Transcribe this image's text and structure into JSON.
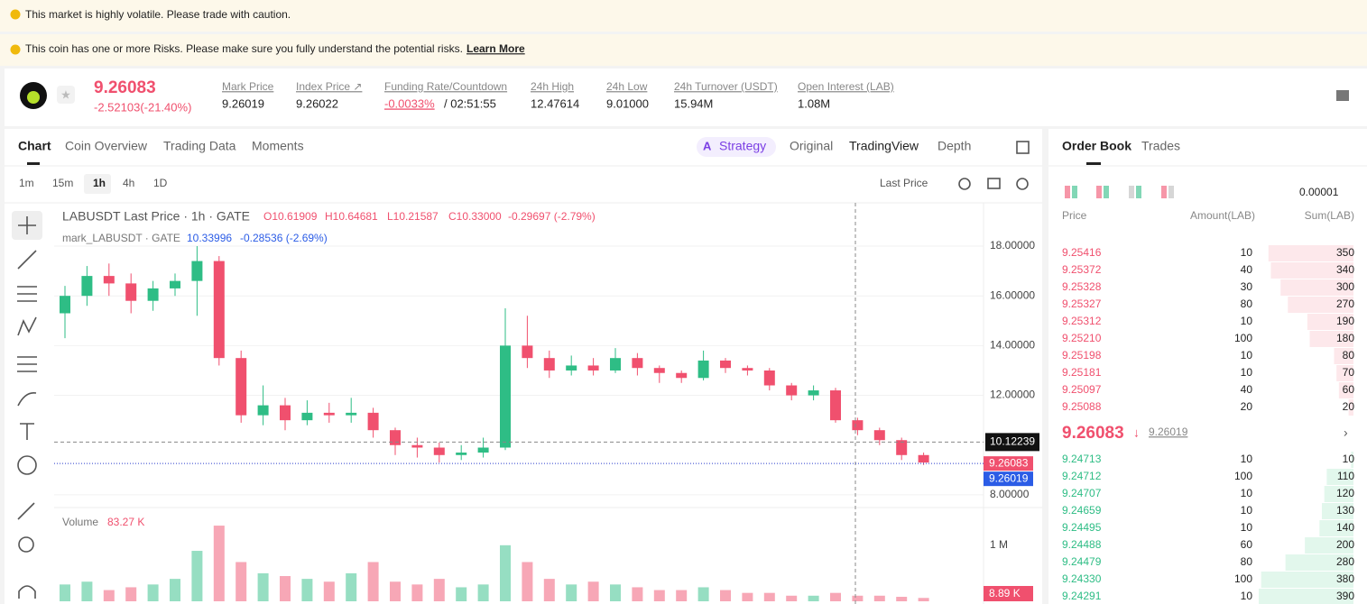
{
  "banners": {
    "volatile": "This market is highly volatile. Please trade with caution.",
    "risk": "This coin has one or more Risks. Please make sure you fully understand the potential risks.",
    "learn_more": "Learn More"
  },
  "header": {
    "price": "9.26083",
    "change": "-2.52103(-21.40%)",
    "stats": [
      {
        "label": "Mark Price",
        "value": "9.26019"
      },
      {
        "label": "Index Price ↗",
        "value": "9.26022"
      },
      {
        "label": "Funding Rate/Countdown",
        "value": "-0.0033%",
        "countdown": "/ 02:51:55"
      },
      {
        "label": "24h High",
        "value": "12.47614"
      },
      {
        "label": "24h Low",
        "value": "9.01000"
      },
      {
        "label": "24h Turnover (USDT)",
        "value": "15.94M"
      },
      {
        "label": "Open Interest (LAB)",
        "value": "1.08M"
      }
    ]
  },
  "tabs": [
    "Chart",
    "Coin Overview",
    "Trading Data",
    "Moments"
  ],
  "view_tabs": [
    "Strategy",
    "Original",
    "TradingView",
    "Depth"
  ],
  "intervals": [
    "1m",
    "15m",
    "1h",
    "4h",
    "1D"
  ],
  "price_source": "Last Price",
  "chart_data": {
    "type": "candlestick",
    "legend": {
      "symbol": "LABUSDT Last Price · 1h · GATE",
      "open": "O10.61909",
      "high": "H10.64681",
      "low": "L10.21587",
      "close": "C10.33000",
      "change": "-0.29697 (-2.79%)"
    },
    "mark_legend": {
      "symbol": "mark_LABUSDT · GATE",
      "value": "10.33996",
      "change": "-0.28536 (-2.69%)"
    },
    "ylim": [
      7.49,
      19.74
    ],
    "yticks": [
      {
        "value": 8,
        "label": "8.00000"
      },
      {
        "value": 12,
        "label": "12.00000"
      },
      {
        "value": 14,
        "label": "14.00000"
      },
      {
        "value": 16,
        "label": "16.00000"
      },
      {
        "value": 18,
        "label": "18.00000"
      }
    ],
    "crosshair": {
      "value": 10.12239,
      "label": "10.12239"
    },
    "last_price": {
      "value": 9.26083,
      "label": "9.26083",
      "color": "#f0506e"
    },
    "mark_price": {
      "value": 9.26019,
      "label": "9.26019",
      "color": "#2b5ce6"
    },
    "up_color": "#2ebd85",
    "down_color": "#f0506e",
    "open": [
      15.3,
      16.0,
      16.8,
      16.5,
      15.8,
      16.3,
      16.6,
      17.4,
      13.5,
      11.2,
      11.6,
      11.0,
      11.3,
      11.2,
      11.3,
      10.6,
      10.0,
      9.9,
      9.6,
      9.7,
      9.9,
      14.0,
      13.5,
      13.0,
      13.2,
      13.0,
      13.5,
      13.1,
      12.9,
      12.7,
      13.4,
      13.1,
      13.0,
      12.4,
      12.0,
      12.2,
      11.0,
      10.6,
      10.2,
      9.6
    ],
    "high": [
      16.4,
      17.2,
      17.3,
      16.9,
      16.6,
      16.9,
      18.0,
      17.6,
      13.8,
      12.4,
      11.9,
      11.8,
      11.7,
      11.9,
      11.5,
      10.7,
      10.3,
      10.1,
      10.0,
      10.3,
      15.5,
      15.2,
      13.8,
      13.6,
      13.5,
      13.9,
      13.7,
      13.2,
      13.0,
      13.8,
      13.5,
      13.2,
      13.1,
      12.5,
      12.4,
      12.3,
      11.1,
      10.7,
      10.3,
      9.7
    ],
    "low": [
      14.3,
      15.6,
      16.0,
      15.3,
      15.4,
      16.0,
      15.2,
      13.2,
      10.9,
      10.8,
      10.6,
      10.8,
      10.9,
      10.9,
      10.3,
      9.6,
      9.5,
      9.3,
      9.4,
      9.5,
      9.8,
      13.1,
      12.7,
      12.8,
      12.8,
      12.9,
      12.8,
      12.5,
      12.5,
      12.6,
      12.9,
      12.8,
      12.2,
      11.8,
      11.8,
      10.9,
      10.4,
      10.0,
      9.4,
      9.2
    ],
    "close": [
      16.0,
      16.8,
      16.5,
      15.8,
      16.3,
      16.6,
      17.4,
      13.5,
      11.2,
      11.6,
      11.0,
      11.3,
      11.2,
      11.3,
      10.6,
      10.0,
      9.9,
      9.6,
      9.7,
      9.9,
      14.0,
      13.5,
      13.0,
      13.2,
      13.0,
      13.5,
      13.1,
      12.9,
      12.7,
      13.4,
      13.1,
      13.0,
      12.4,
      12.0,
      12.2,
      11.0,
      10.6,
      10.2,
      9.6,
      9.3
    ],
    "volume_title": "Volume",
    "volume_last": "83.27 K",
    "volume_current": "8.89 K",
    "y2lim": [
      0,
      1560000
    ],
    "y2ticks": [
      {
        "value": 1000000,
        "label": "1 M"
      }
    ],
    "volume": [
      300000,
      350000,
      200000,
      250000,
      300000,
      400000,
      900000,
      1350000,
      700000,
      500000,
      450000,
      400000,
      350000,
      500000,
      700000,
      350000,
      300000,
      400000,
      250000,
      300000,
      1000000,
      700000,
      400000,
      300000,
      350000,
      300000,
      250000,
      200000,
      200000,
      250000,
      200000,
      150000,
      150000,
      100000,
      100000,
      150000,
      100000,
      100000,
      80000,
      60000
    ]
  },
  "order_book": {
    "tabs": [
      "Order Book",
      "Trades"
    ],
    "precision": "0.00001",
    "headers": [
      "Price",
      "Amount(LAB)",
      "Sum(LAB)"
    ],
    "asks": [
      [
        "9.25416",
        10,
        350
      ],
      [
        "9.25372",
        40,
        340
      ],
      [
        "9.25328",
        30,
        300
      ],
      [
        "9.25327",
        80,
        270
      ],
      [
        "9.25312",
        10,
        190
      ],
      [
        "9.25210",
        100,
        180
      ],
      [
        "9.25198",
        10,
        80
      ],
      [
        "9.25181",
        10,
        70
      ],
      [
        "9.25097",
        40,
        60
      ],
      [
        "9.25088",
        20,
        20
      ]
    ],
    "last": "9.26083",
    "mark": "9.26019",
    "bids": [
      [
        "9.24713",
        10,
        10
      ],
      [
        "9.24712",
        100,
        110
      ],
      [
        "9.24707",
        10,
        120
      ],
      [
        "9.24659",
        10,
        130
      ],
      [
        "9.24495",
        10,
        140
      ],
      [
        "9.24488",
        60,
        200
      ],
      [
        "9.24479",
        80,
        280
      ],
      [
        "9.24330",
        100,
        380
      ],
      [
        "9.24291",
        10,
        390
      ]
    ]
  }
}
